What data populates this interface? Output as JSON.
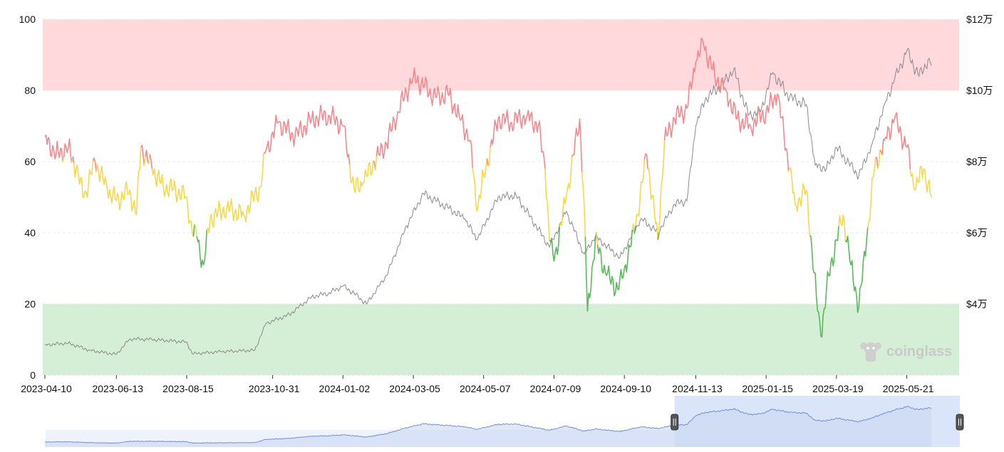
{
  "chart_data": {
    "type": "line",
    "title": "",
    "xlabel": "",
    "ylabel": "",
    "y_left_range": [
      0,
      100
    ],
    "y_left_ticks": [
      "0",
      "20",
      "40",
      "60",
      "80",
      "100"
    ],
    "y_right_ticks": [
      {
        "label": "$4万",
        "value": 40000
      },
      {
        "label": "$6万",
        "value": 60000
      },
      {
        "label": "$8万",
        "value": 80000
      },
      {
        "label": "$10万",
        "value": 100000
      },
      {
        "label": "$12万",
        "value": 120000
      }
    ],
    "x_ticks": [
      "2023-04-10",
      "2023-06-13",
      "2023-08-15",
      "2023-10-31",
      "2024-01-02",
      "2024-03-05",
      "2024-05-07",
      "2024-07-09",
      "2024-09-10",
      "2024-11-13",
      "2025-01-15",
      "2025-03-19",
      "2025-05-21"
    ],
    "zones": [
      {
        "from": 80,
        "to": 100,
        "color": "#ffd9db"
      },
      {
        "from": 0,
        "to": 20,
        "color": "#d5eed6"
      }
    ],
    "line_colors": {
      "high": "#f08a8f",
      "mid": "#f5d94d",
      "low": "#5cb85c",
      "price": "#8a8a8a"
    },
    "thresholds": {
      "upper": 60,
      "lower": 40
    },
    "index_series": {
      "points": [
        [
          "2023-04-10",
          67
        ],
        [
          "2023-04-20",
          62
        ],
        [
          "2023-05-01",
          64
        ],
        [
          "2023-05-08",
          58
        ],
        [
          "2023-05-15",
          50
        ],
        [
          "2023-05-25",
          60
        ],
        [
          "2023-06-05",
          52
        ],
        [
          "2023-06-13",
          49
        ],
        [
          "2023-06-25",
          52
        ],
        [
          "2023-07-01",
          45
        ],
        [
          "2023-07-05",
          64
        ],
        [
          "2023-07-15",
          58
        ],
        [
          "2023-07-25",
          53
        ],
        [
          "2023-08-05",
          52
        ],
        [
          "2023-08-15",
          50
        ],
        [
          "2023-08-20",
          40
        ],
        [
          "2023-08-24",
          39
        ],
        [
          "2023-08-30",
          31
        ],
        [
          "2023-09-05",
          44
        ],
        [
          "2023-09-20",
          47
        ],
        [
          "2023-10-05",
          45
        ],
        [
          "2023-10-20",
          53
        ],
        [
          "2023-10-25",
          63
        ],
        [
          "2023-11-05",
          71
        ],
        [
          "2023-11-20",
          67
        ],
        [
          "2023-12-05",
          72
        ],
        [
          "2023-12-20",
          73
        ],
        [
          "2024-01-02",
          70
        ],
        [
          "2024-01-12",
          52
        ],
        [
          "2024-01-20",
          54
        ],
        [
          "2024-01-30",
          60
        ],
        [
          "2024-02-10",
          65
        ],
        [
          "2024-02-20",
          74
        ],
        [
          "2024-03-05",
          84
        ],
        [
          "2024-03-15",
          81
        ],
        [
          "2024-03-25",
          78
        ],
        [
          "2024-04-05",
          79
        ],
        [
          "2024-04-15",
          73
        ],
        [
          "2024-04-25",
          66
        ],
        [
          "2024-05-01",
          46
        ],
        [
          "2024-05-07",
          56
        ],
        [
          "2024-05-20",
          72
        ],
        [
          "2024-06-01",
          71
        ],
        [
          "2024-06-15",
          73
        ],
        [
          "2024-06-25",
          70
        ],
        [
          "2024-07-01",
          58
        ],
        [
          "2024-07-05",
          38
        ],
        [
          "2024-07-09",
          32
        ],
        [
          "2024-07-20",
          50
        ],
        [
          "2024-08-01",
          72
        ],
        [
          "2024-08-05",
          48
        ],
        [
          "2024-08-08",
          18
        ],
        [
          "2024-08-15",
          38
        ],
        [
          "2024-08-25",
          28
        ],
        [
          "2024-09-05",
          24
        ],
        [
          "2024-09-10",
          30
        ],
        [
          "2024-09-20",
          42
        ],
        [
          "2024-09-30",
          62
        ],
        [
          "2024-10-10",
          38
        ],
        [
          "2024-10-16",
          66
        ],
        [
          "2024-10-25",
          72
        ],
        [
          "2024-11-05",
          75
        ],
        [
          "2024-11-13",
          88
        ],
        [
          "2024-11-20",
          93
        ],
        [
          "2024-11-30",
          84
        ],
        [
          "2024-12-10",
          80
        ],
        [
          "2024-12-20",
          72
        ],
        [
          "2025-01-01",
          70
        ],
        [
          "2025-01-15",
          74
        ],
        [
          "2025-01-25",
          79
        ],
        [
          "2025-02-05",
          58
        ],
        [
          "2025-02-10",
          48
        ],
        [
          "2025-02-20",
          52
        ],
        [
          "2025-03-01",
          22
        ],
        [
          "2025-03-05",
          11
        ],
        [
          "2025-03-12",
          28
        ],
        [
          "2025-03-19",
          38
        ],
        [
          "2025-03-25",
          45
        ],
        [
          "2025-04-01",
          31
        ],
        [
          "2025-04-08",
          19
        ],
        [
          "2025-04-15",
          38
        ],
        [
          "2025-04-22",
          58
        ],
        [
          "2025-05-01",
          66
        ],
        [
          "2025-05-10",
          72
        ],
        [
          "2025-05-21",
          64
        ],
        [
          "2025-05-28",
          52
        ],
        [
          "2025-06-05",
          58
        ],
        [
          "2025-06-12",
          50
        ]
      ]
    },
    "price_series": {
      "points": [
        [
          "2023-04-10",
          28500
        ],
        [
          "2023-05-01",
          29000
        ],
        [
          "2023-05-20",
          27000
        ],
        [
          "2023-06-13",
          25800
        ],
        [
          "2023-06-25",
          30200
        ],
        [
          "2023-07-15",
          30000
        ],
        [
          "2023-08-15",
          29300
        ],
        [
          "2023-08-20",
          26000
        ],
        [
          "2023-09-15",
          26600
        ],
        [
          "2023-10-15",
          27000
        ],
        [
          "2023-10-25",
          34500
        ],
        [
          "2023-11-15",
          37000
        ],
        [
          "2023-12-05",
          42000
        ],
        [
          "2023-12-20",
          43000
        ],
        [
          "2024-01-02",
          45000
        ],
        [
          "2024-01-12",
          43000
        ],
        [
          "2024-01-23",
          40000
        ],
        [
          "2024-02-10",
          48000
        ],
        [
          "2024-02-28",
          62000
        ],
        [
          "2024-03-14",
          71000
        ],
        [
          "2024-03-25",
          69000
        ],
        [
          "2024-04-05",
          67000
        ],
        [
          "2024-04-20",
          64000
        ],
        [
          "2024-05-01",
          58000
        ],
        [
          "2024-05-20",
          70000
        ],
        [
          "2024-06-05",
          70500
        ],
        [
          "2024-06-25",
          61000
        ],
        [
          "2024-07-05",
          56000
        ],
        [
          "2024-07-20",
          66000
        ],
        [
          "2024-08-05",
          54000
        ],
        [
          "2024-08-15",
          59000
        ],
        [
          "2024-09-06",
          53000
        ],
        [
          "2024-09-25",
          64000
        ],
        [
          "2024-10-10",
          60000
        ],
        [
          "2024-10-25",
          68000
        ],
        [
          "2024-11-05",
          69000
        ],
        [
          "2024-11-13",
          90000
        ],
        [
          "2024-11-22",
          98000
        ],
        [
          "2024-12-05",
          101000
        ],
        [
          "2024-12-17",
          106000
        ],
        [
          "2024-12-30",
          93000
        ],
        [
          "2025-01-10",
          94000
        ],
        [
          "2025-01-21",
          105000
        ],
        [
          "2025-02-05",
          98000
        ],
        [
          "2025-02-20",
          96000
        ],
        [
          "2025-02-28",
          79000
        ],
        [
          "2025-03-10",
          78000
        ],
        [
          "2025-03-19",
          84000
        ],
        [
          "2025-04-08",
          76000
        ],
        [
          "2025-04-20",
          85000
        ],
        [
          "2025-05-01",
          96000
        ],
        [
          "2025-05-10",
          103000
        ],
        [
          "2025-05-21",
          111000
        ],
        [
          "2025-06-01",
          104000
        ],
        [
          "2025-06-10",
          109000
        ],
        [
          "2025-06-12",
          107000
        ]
      ]
    },
    "navigator": {
      "selection_start": "2024-10-25",
      "selection_end": "2025-06-12"
    },
    "watermark": "coinglass"
  }
}
